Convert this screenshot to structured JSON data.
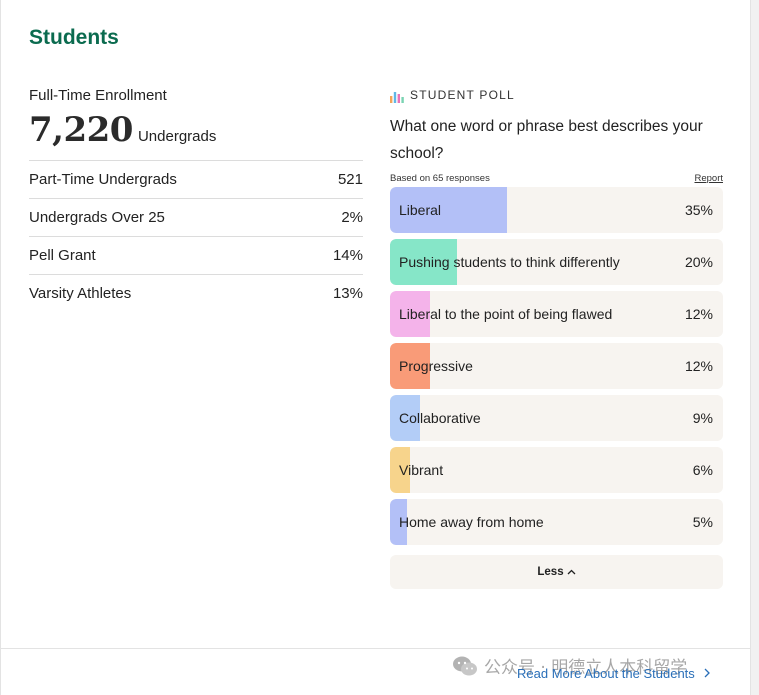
{
  "section": {
    "title": "Students"
  },
  "enrollment": {
    "label": "Full-Time Enrollment",
    "value": "7,220",
    "unit": "Undergrads"
  },
  "stats": [
    {
      "label": "Part-Time Undergrads",
      "value": "521"
    },
    {
      "label": "Undergrads Over 25",
      "value": "2%"
    },
    {
      "label": "Pell Grant",
      "value": "14%"
    },
    {
      "label": "Varsity Athletes",
      "value": "13%"
    }
  ],
  "poll": {
    "title": "STUDENT POLL",
    "icon": "bar-chart-icon",
    "question": "What one word or phrase best describes your school?",
    "based_on": "Based on 65 responses",
    "report_label": "Report",
    "options": [
      {
        "label": "Liberal",
        "percent": "35%",
        "fraction": 0.35,
        "color": "#b3c0f7"
      },
      {
        "label": "Pushing students to think differently",
        "percent": "20%",
        "fraction": 0.2,
        "color": "#86e6c8"
      },
      {
        "label": "Liberal to the point of being flawed",
        "percent": "12%",
        "fraction": 0.12,
        "color": "#f4b3ea"
      },
      {
        "label": "Progressive",
        "percent": "12%",
        "fraction": 0.12,
        "color": "#f99b78"
      },
      {
        "label": "Collaborative",
        "percent": "9%",
        "fraction": 0.09,
        "color": "#b3cdf7"
      },
      {
        "label": "Vibrant",
        "percent": "6%",
        "fraction": 0.06,
        "color": "#f7d48c"
      },
      {
        "label": "Home away from home",
        "percent": "5%",
        "fraction": 0.05,
        "color": "#b3c0f7"
      }
    ],
    "less_label": "Less"
  },
  "footer": {
    "read_more_label": "Read More About the Students"
  },
  "watermark": {
    "text": "公众号 · 明德立人本科留学",
    "icon": "wechat-icon"
  },
  "colors": {
    "title_green": "#0b6b4f",
    "link_blue": "#2a6fb8",
    "option_bg": "#f7f4f0"
  }
}
